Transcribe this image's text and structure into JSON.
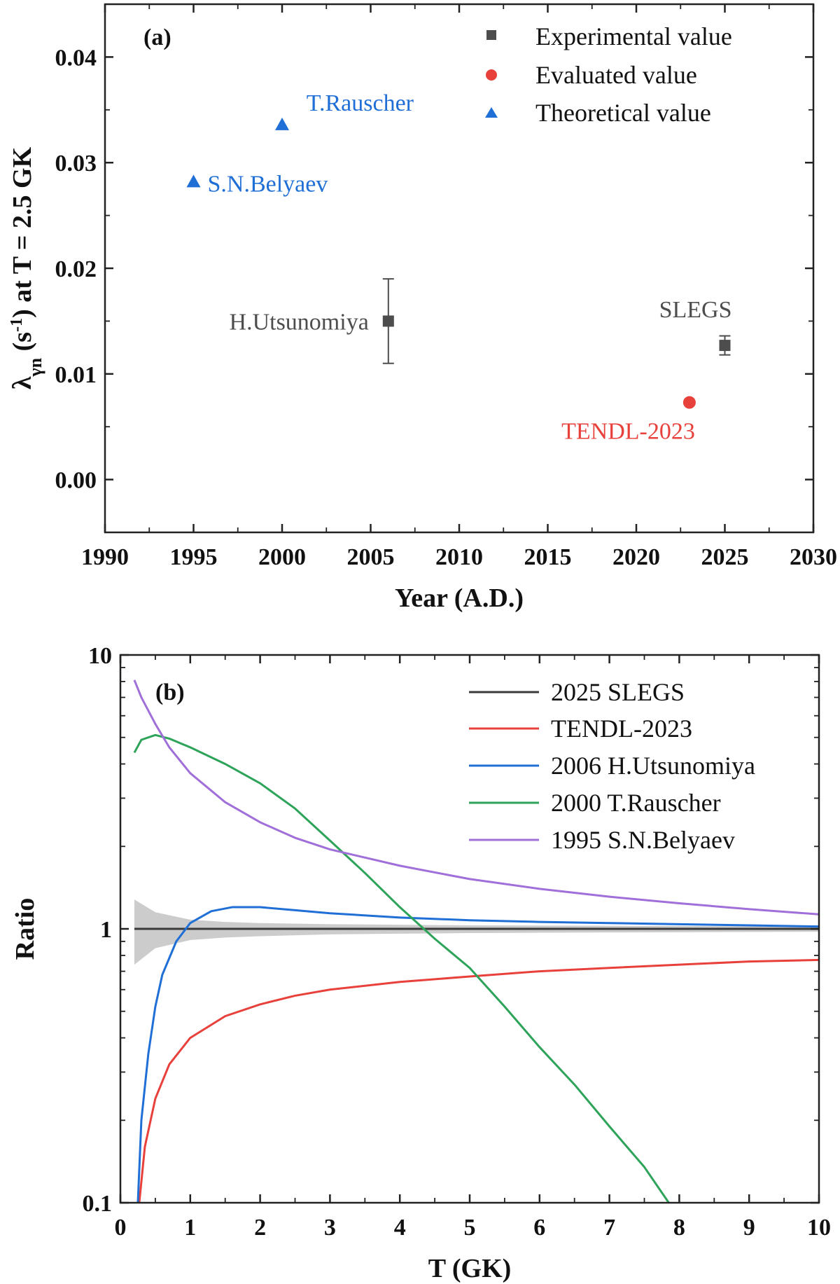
{
  "chart_data": [
    {
      "type": "scatter",
      "panel_label": "(a)",
      "xlabel": "Year (A.D.)",
      "ylabel": {
        "main": "λ",
        "sub": "γn",
        "mid": " (s",
        "sup": "-1",
        "end": ") at T = 2.5 GK"
      },
      "xlim": [
        1990,
        2030
      ],
      "ylim": [
        -0.005,
        0.045
      ],
      "xticks": [
        1990,
        1995,
        2000,
        2005,
        2010,
        2015,
        2020,
        2025,
        2030
      ],
      "yticks": [
        0.0,
        0.01,
        0.02,
        0.03,
        0.04
      ],
      "ytick_labels": [
        "0.00",
        "0.01",
        "0.02",
        "0.03",
        "0.04"
      ],
      "legend_position": "top-right",
      "legend": [
        {
          "label": "Experimental value",
          "marker": "square",
          "color": "#4d4d4d"
        },
        {
          "label": "Evaluated value",
          "marker": "circle",
          "color": "#e8413c"
        },
        {
          "label": "Theoretical value",
          "marker": "triangle",
          "color": "#1f6fd6"
        }
      ],
      "points": [
        {
          "label": "H.Utsunomiya",
          "x": 2006,
          "y": 0.015,
          "err": 0.004,
          "marker": "square",
          "color": "#4d4d4d"
        },
        {
          "label": "SLEGS",
          "x": 2025,
          "y": 0.0127,
          "err": 0.0009,
          "marker": "square",
          "color": "#4d4d4d"
        },
        {
          "label": "TENDL-2023",
          "x": 2023,
          "y": 0.0073,
          "marker": "circle",
          "color": "#e8413c"
        },
        {
          "label": "T.Rauscher",
          "x": 2000,
          "y": 0.0336,
          "marker": "triangle",
          "color": "#1f6fd6"
        },
        {
          "label": "S.N.Belyaev",
          "x": 1995,
          "y": 0.0282,
          "marker": "triangle",
          "color": "#1f6fd6"
        }
      ]
    },
    {
      "type": "line",
      "panel_label": "(b)",
      "xlabel": "T (GK)",
      "ylabel": "Ratio",
      "xlim": [
        0,
        10
      ],
      "ylim": [
        0.1,
        10
      ],
      "yscale": "log",
      "xticks": [
        0,
        1,
        2,
        3,
        4,
        5,
        6,
        7,
        8,
        9,
        10
      ],
      "yticks": [
        0.1,
        1,
        10
      ],
      "ytick_labels": [
        "0.1",
        "1",
        "10"
      ],
      "legend_position": "top-right",
      "band": {
        "color": "#cccccc",
        "x": [
          0.2,
          0.5,
          1,
          1.5,
          2,
          3,
          4,
          5,
          6,
          7,
          8,
          9,
          10
        ],
        "upper": [
          1.28,
          1.15,
          1.08,
          1.06,
          1.05,
          1.04,
          1.035,
          1.03,
          1.028,
          1.026,
          1.024,
          1.022,
          1.02
        ],
        "lower": [
          0.74,
          0.85,
          0.91,
          0.93,
          0.94,
          0.955,
          0.96,
          0.965,
          0.968,
          0.97,
          0.972,
          0.974,
          0.976
        ]
      },
      "series": [
        {
          "name": "2025 SLEGS",
          "color": "#3a3a3a",
          "x": [
            0.2,
            10
          ],
          "y": [
            1.0,
            1.0
          ]
        },
        {
          "name": "TENDL-2023",
          "color": "#e8413c",
          "x": [
            0.27,
            0.35,
            0.5,
            0.7,
            1.0,
            1.5,
            2.0,
            2.5,
            3,
            4,
            5,
            6,
            7,
            8,
            9,
            10
          ],
          "y": [
            0.1,
            0.16,
            0.24,
            0.32,
            0.4,
            0.48,
            0.53,
            0.57,
            0.6,
            0.64,
            0.67,
            0.7,
            0.72,
            0.74,
            0.76,
            0.77
          ]
        },
        {
          "name": "2006 H.Utsunomiya",
          "color": "#1f6fd6",
          "x": [
            0.25,
            0.3,
            0.4,
            0.5,
            0.6,
            0.8,
            1.0,
            1.3,
            1.6,
            2.0,
            2.5,
            3,
            4,
            5,
            6,
            7,
            8,
            9,
            10
          ],
          "y": [
            0.1,
            0.2,
            0.35,
            0.52,
            0.68,
            0.9,
            1.05,
            1.16,
            1.2,
            1.2,
            1.17,
            1.14,
            1.1,
            1.075,
            1.06,
            1.05,
            1.04,
            1.03,
            1.02
          ]
        },
        {
          "name": "2000 T.Rauscher",
          "color": "#2ea35a",
          "x": [
            0.2,
            0.3,
            0.5,
            0.7,
            1.0,
            1.5,
            2.0,
            2.5,
            3,
            3.5,
            4,
            4.5,
            5,
            5.5,
            6,
            6.5,
            7,
            7.5,
            7.85
          ],
          "y": [
            4.4,
            4.9,
            5.1,
            4.95,
            4.6,
            4.0,
            3.4,
            2.75,
            2.1,
            1.6,
            1.2,
            0.92,
            0.72,
            0.52,
            0.37,
            0.27,
            0.19,
            0.135,
            0.1
          ]
        },
        {
          "name": "1995 S.N.Belyaev",
          "color": "#a06fd9",
          "x": [
            0.2,
            0.3,
            0.5,
            0.7,
            1.0,
            1.5,
            2.0,
            2.5,
            3,
            4,
            5,
            6,
            7,
            8,
            9,
            10
          ],
          "y": [
            8.1,
            7.0,
            5.6,
            4.6,
            3.7,
            2.9,
            2.45,
            2.15,
            1.95,
            1.7,
            1.52,
            1.4,
            1.31,
            1.24,
            1.18,
            1.13
          ]
        }
      ]
    }
  ]
}
